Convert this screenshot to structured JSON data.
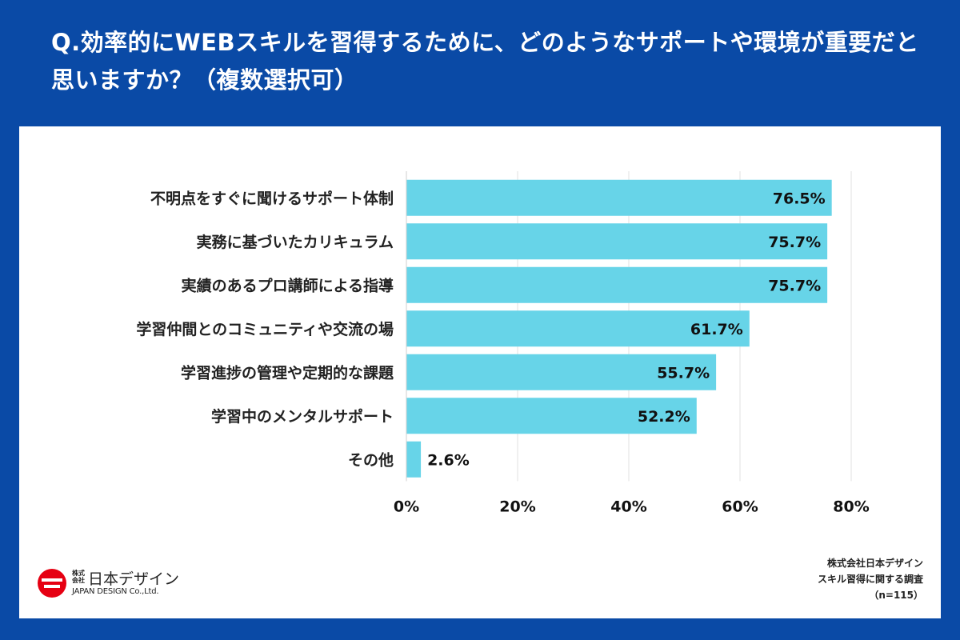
{
  "title": "Q.効率的にWEBスキルを習得するために、どのようなサポートや環境が重要だと思いますか？（複数選択可）",
  "chart_data": {
    "type": "bar",
    "orientation": "horizontal",
    "categories": [
      "不明点をすぐに聞けるサポート体制",
      "実務に基づいたカリキュラム",
      "実績のあるプロ講師による指導",
      "学習仲間とのコミュニティや交流の場",
      "学習進捗の管理や定期的な課題",
      "学習中のメンタルサポート",
      "その他"
    ],
    "values": [
      76.5,
      75.7,
      75.7,
      61.7,
      55.7,
      52.2,
      2.6
    ],
    "value_labels": [
      "76.5%",
      "75.7%",
      "75.7%",
      "61.7%",
      "55.7%",
      "52.2%",
      "2.6%"
    ],
    "xlim": [
      0,
      80
    ],
    "xticks": [
      0,
      20,
      40,
      60,
      80
    ],
    "xtick_labels": [
      "0%",
      "20%",
      "40%",
      "60%",
      "80%"
    ],
    "grid": true,
    "bar_color": "#67d4e8",
    "xlabel": "",
    "ylabel": ""
  },
  "logo": {
    "jp_small": "株式会社",
    "jp": "日本デザイン",
    "en": "JAPAN DESIGN Co.,Ltd.",
    "mark_color": "#e60012"
  },
  "source": {
    "line1": "株式会社日本デザイン",
    "line2": "スキル習得に関する調査",
    "line3": "（n=115）"
  }
}
